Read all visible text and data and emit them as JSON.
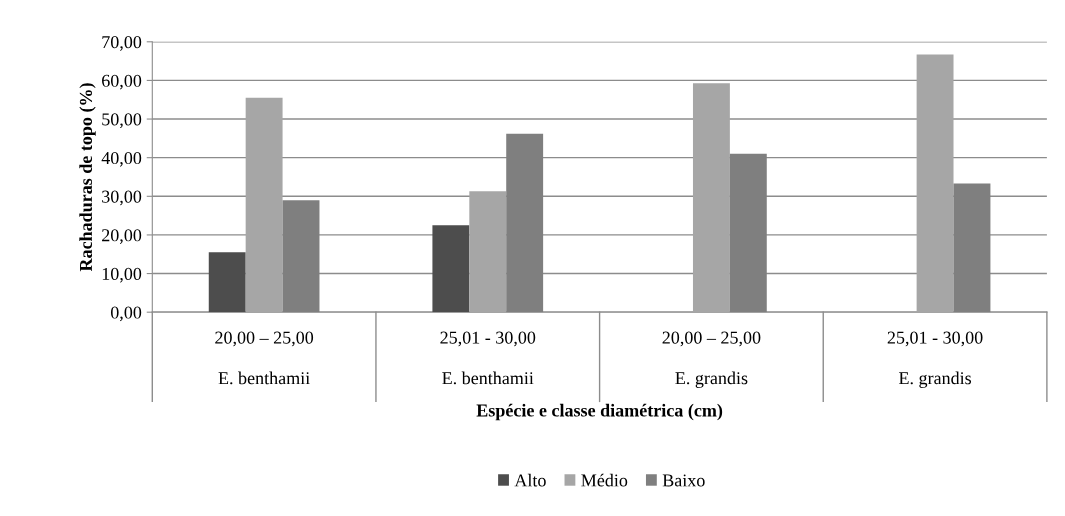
{
  "chart_data": {
    "type": "bar",
    "xlabel": "Espécie e classe diamétrica (cm)",
    "ylabel": "Rachaduras de topo (%)",
    "categories": [
      "20,00 – 25,00\nE. benthamii",
      "25,01 - 30,00\nE. benthamii",
      "20,00 – 25,00\nE. grandis",
      "25,01 - 30,00\nE. grandis"
    ],
    "series": [
      {
        "name": "Alto",
        "color": "#4d4d4d",
        "values": [
          15.5,
          22.5,
          null,
          null
        ]
      },
      {
        "name": "Médio",
        "color": "#a6a6a6",
        "values": [
          55.5,
          31.3,
          59.3,
          66.7
        ]
      },
      {
        "name": "Baixo",
        "color": "#7f7f7f",
        "values": [
          29.0,
          46.2,
          41.0,
          33.3
        ]
      }
    ],
    "ylim": [
      0,
      70
    ],
    "yticks": [
      {
        "value": 0,
        "label": "0,00"
      },
      {
        "value": 10,
        "label": "10,00"
      },
      {
        "value": 20,
        "label": "20,00"
      },
      {
        "value": 30,
        "label": "30,00"
      },
      {
        "value": 40,
        "label": "40,00"
      },
      {
        "value": 50,
        "label": "50,00"
      },
      {
        "value": 60,
        "label": "60,00"
      },
      {
        "value": 70,
        "label": "70,00"
      }
    ],
    "grid": "y",
    "legend": "bottom"
  }
}
